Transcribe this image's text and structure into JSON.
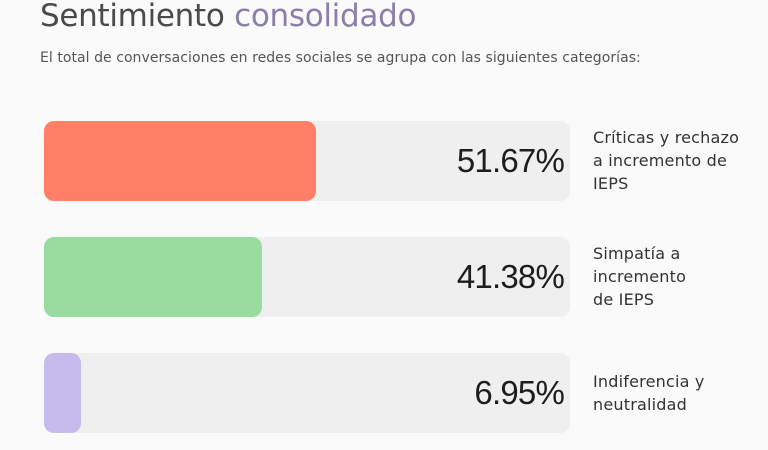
{
  "title_part1": "Sentimiento",
  "title_part2": "consolidado",
  "subtitle": "El total de conversaciones en redes sociales se agrupa con las siguientes categorías:",
  "chart_data": {
    "type": "bar",
    "orientation": "horizontal",
    "title": "Sentimiento consolidado",
    "subtitle": "El total de conversaciones en redes sociales se agrupa con las siguientes categorías:",
    "categories": [
      "Críticas y rechazo a incremento de IEPS",
      "Simpatía a incremento de IEPS",
      "Indiferencia y neutralidad"
    ],
    "category_lines": [
      [
        "Críticas y rechazo",
        "a incremento de",
        "IEPS"
      ],
      [
        "Simpatía a",
        "incremento",
        "de IEPS"
      ],
      [
        "Indiferencia y",
        "neutralidad"
      ]
    ],
    "values": [
      51.67,
      41.38,
      6.95
    ],
    "value_labels": [
      "51.67%",
      "41.38%",
      "6.95%"
    ],
    "colors": [
      "#ff8066",
      "#98dca0",
      "#c5bcec"
    ],
    "track_color": "#efefef",
    "xlim": [
      0,
      100
    ],
    "grid": false,
    "legend": "none"
  }
}
